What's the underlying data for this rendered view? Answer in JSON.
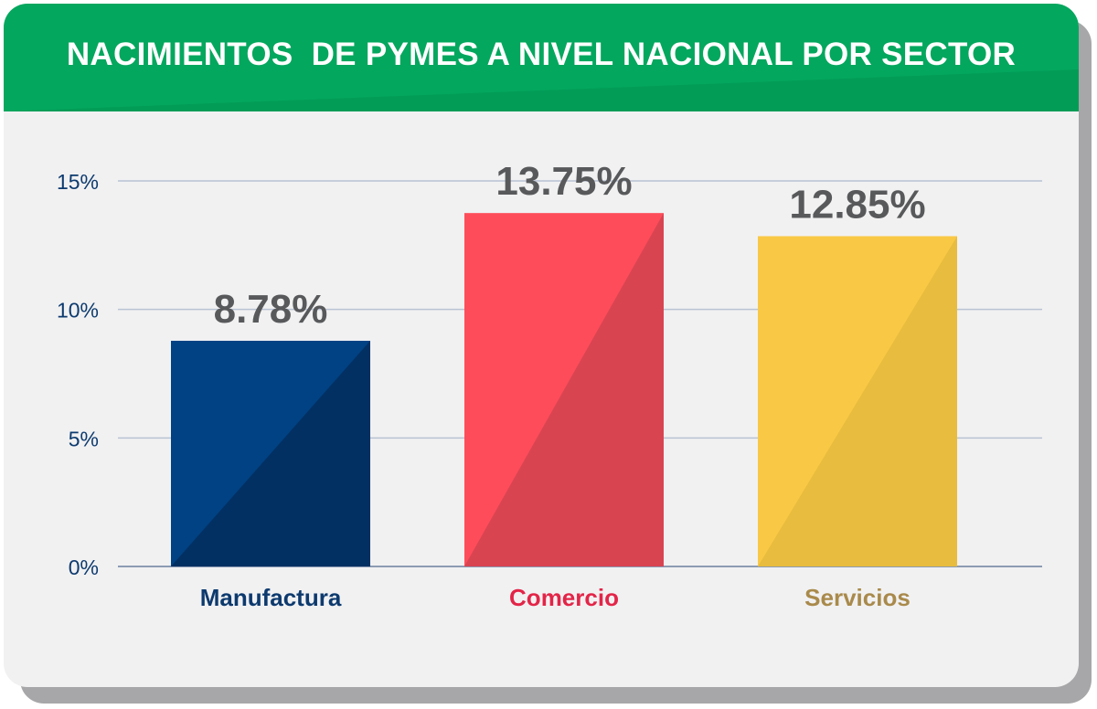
{
  "header": {
    "title": "NACIMIENTOS  DE PYMES A NIVEL NACIONAL POR SECTOR"
  },
  "colors": {
    "header": "#04a75e",
    "card": "#f1f1f2",
    "axis_text": "#0d3a6e",
    "value_text": "#58595b",
    "grid": "#b9c3d3",
    "baseline": "#8c9bb3"
  },
  "chart_data": {
    "type": "bar",
    "title": "NACIMIENTOS  DE PYMES A NIVEL NACIONAL POR SECTOR",
    "xlabel": "",
    "ylabel": "",
    "ylim": [
      0,
      15
    ],
    "yticks": [
      0,
      5,
      10,
      15
    ],
    "ytick_labels": [
      "0%",
      "5%",
      "10%",
      "15%"
    ],
    "grid": true,
    "categories": [
      "Manufactura",
      "Comercio",
      "Servicios"
    ],
    "values": [
      8.78,
      13.75,
      12.85
    ],
    "value_labels": [
      "8.78%",
      "13.75%",
      "12.85%"
    ],
    "bar_colors": [
      "#004283",
      "#fe4c5a",
      "#f9c945"
    ],
    "bar_shade_colors": [
      "#033063",
      "#d94451",
      "#e8bc3e"
    ],
    "category_label_colors": [
      "#0d3a6e",
      "#e32548",
      "#a98a4b"
    ]
  }
}
